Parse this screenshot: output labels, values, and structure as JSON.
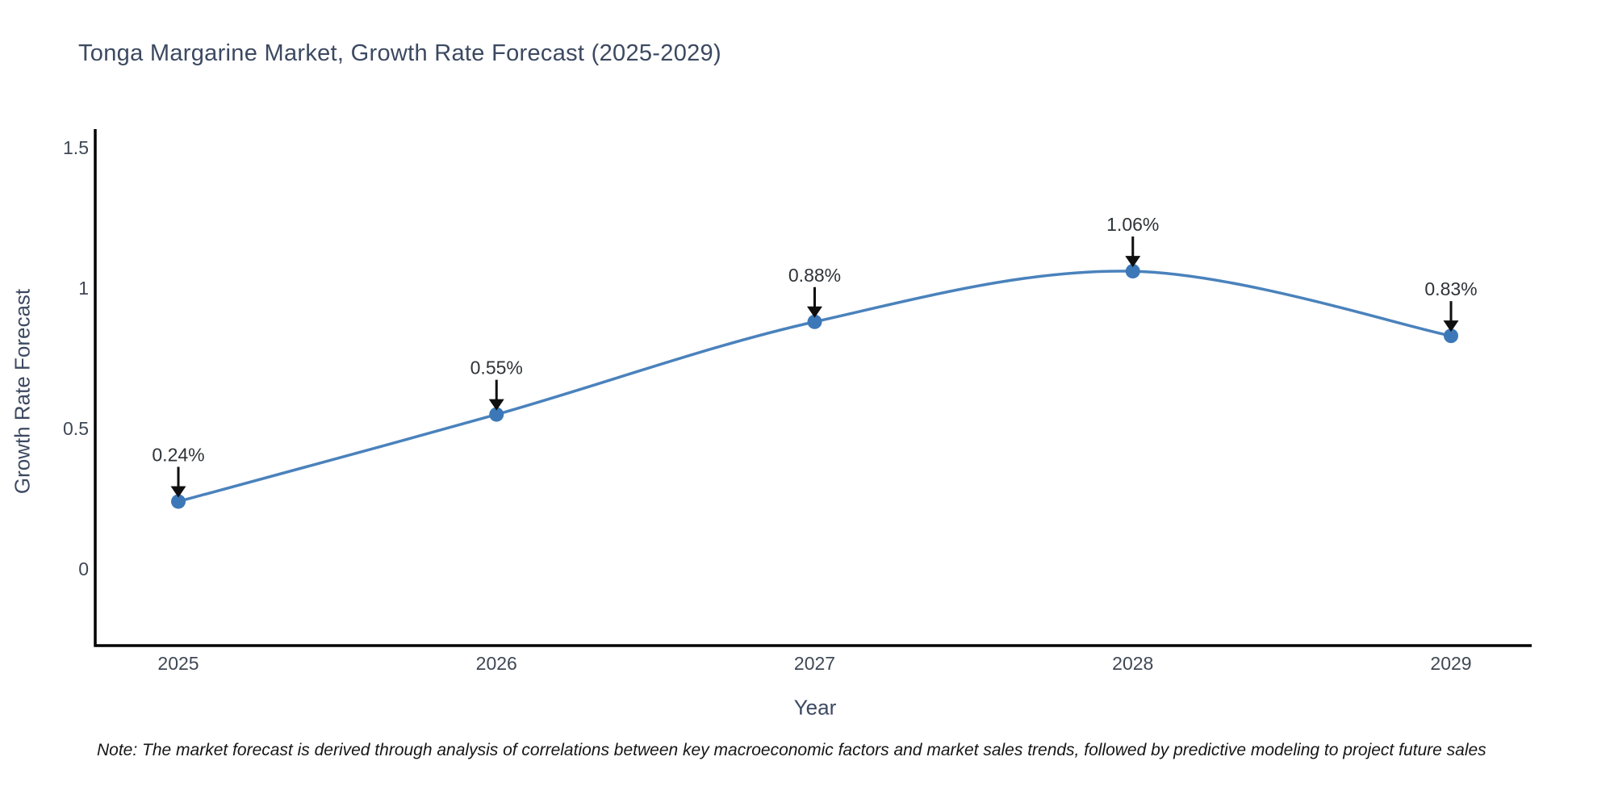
{
  "title": "Tonga Margarine Market, Growth Rate Forecast (2025-2029)",
  "note": "Note: The market forecast is derived through analysis of correlations between key macroeconomic factors and market sales trends, followed by predictive modeling to project future sales",
  "chart_data": {
    "type": "line",
    "title": "Tonga Margarine Market, Growth Rate Forecast (2025-2029)",
    "xlabel": "Year",
    "ylabel": "Growth Rate Forecast",
    "categories": [
      "2025",
      "2026",
      "2027",
      "2028",
      "2029"
    ],
    "series": [
      {
        "name": "Growth Rate Forecast",
        "values": [
          0.24,
          0.55,
          0.88,
          1.06,
          0.83
        ],
        "point_labels": [
          "0.24%",
          "0.55%",
          "0.88%",
          "1.06%",
          "0.83%"
        ]
      }
    ],
    "yticks": [
      0,
      0.5,
      1,
      1.5
    ],
    "ytick_labels": [
      "0",
      "0.5",
      "1",
      "1.5"
    ],
    "ylim": [
      -0.28,
      1.56
    ],
    "grid": false,
    "legend_position": "none",
    "line_style": "spline",
    "colors": {
      "line": "#4a82bc",
      "marker": "#3c78b8",
      "arrow": "#0f0f0f",
      "annotation_text": "#2e3338",
      "axis_line": "#000000",
      "tick_text": "#3f4855",
      "title_text": "#3c4961"
    }
  }
}
